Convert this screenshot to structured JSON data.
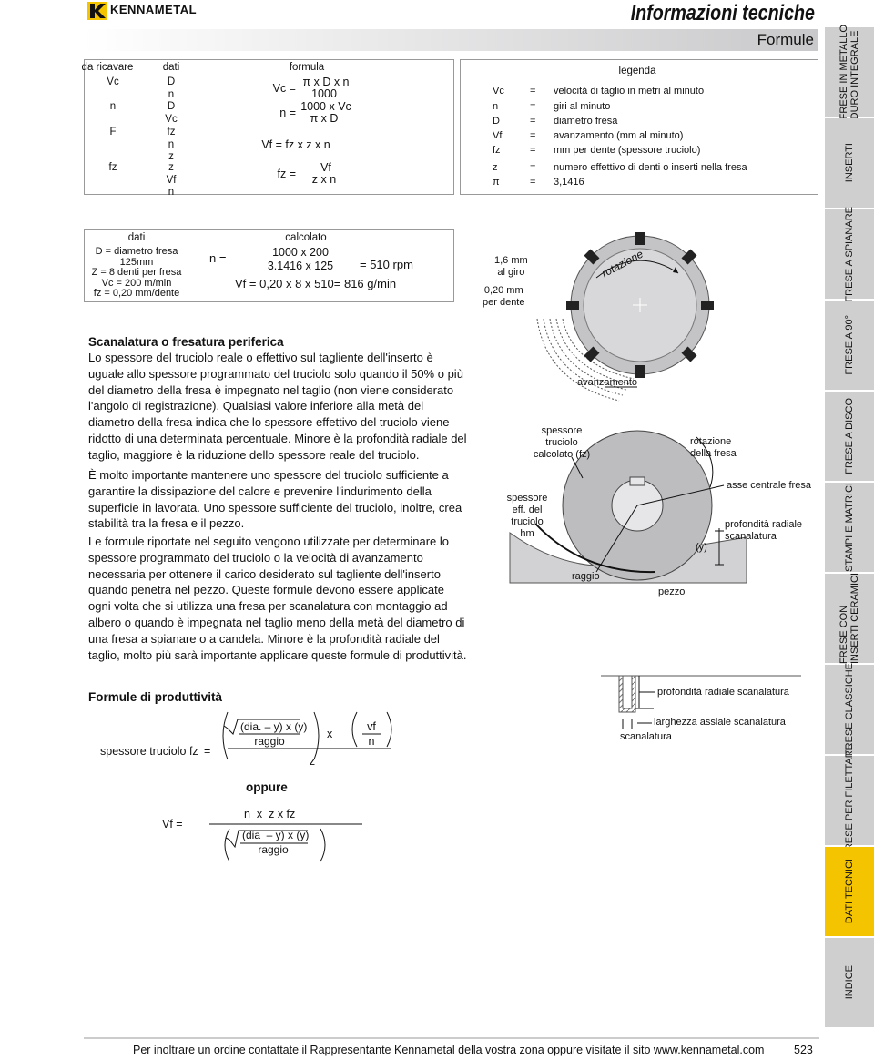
{
  "header": {
    "brand": "KENNAMETAL",
    "title": "Informazioni tecniche",
    "section": "Formule"
  },
  "formula_table": {
    "headers": [
      "da ricavare",
      "dati",
      "formula"
    ],
    "rows": [
      {
        "result": "Vc",
        "given": [
          "D",
          "n"
        ],
        "lhs": "Vc =",
        "numerator": "π x D x n",
        "denominator": "1000"
      },
      {
        "result": "n",
        "given": [
          "D",
          "Vc"
        ],
        "lhs": "n =",
        "numerator": "1000 x Vc",
        "denominator": "π x D"
      },
      {
        "result": "F",
        "given": [
          "fz",
          "n",
          "z"
        ],
        "formula": "Vf = fz x z x n"
      },
      {
        "result": "fz",
        "given": [
          "z",
          "Vf",
          "n"
        ],
        "lhs": "fz =",
        "numerator": "Vf",
        "denominator": "z x n"
      }
    ]
  },
  "legend": {
    "title": "legenda",
    "rows": [
      [
        "Vc",
        "=",
        "velocità di taglio in metri al minuto"
      ],
      [
        "n",
        "=",
        "giri al minuto"
      ],
      [
        "D",
        "=",
        "diametro fresa"
      ],
      [
        "Vf",
        "=",
        "avanzamento (mm al minuto)"
      ],
      [
        "fz",
        "=",
        "mm per dente (spessore truciolo)"
      ],
      [
        "z",
        "=",
        "numero effettivo di denti o inserti nella fresa"
      ],
      [
        "π",
        "=",
        "3,1416"
      ]
    ]
  },
  "example": {
    "headers": [
      "dati",
      "calcolato"
    ],
    "given": [
      "D = diametro fresa",
      "125mm",
      "Z = 8 denti per fresa",
      "Vc = 200 m/min",
      "fz = 0,20 mm/dente"
    ],
    "n_lhs": "n =",
    "n_numerator": "1000 x 200",
    "n_denominator": "3.1416 x 125",
    "n_result": "= 510 rpm",
    "vf": "Vf = 0,20 x 8 x 510= 816 g/min"
  },
  "diagram_feed": {
    "feed_per_rev": [
      "1,6 mm",
      "al giro"
    ],
    "feed_per_tooth": [
      "0,20 mm",
      "per dente"
    ],
    "rotation": "rotazione",
    "feed": "avanzamento"
  },
  "diagram_chip": {
    "calculated_chip": [
      "spessore",
      "truciolo",
      "calcolato (fz)"
    ],
    "cutter_rotation": [
      "rotazione",
      "della fresa"
    ],
    "axis": "asse centrale fresa",
    "effective_chip": [
      "spessore",
      "eff. del",
      "truciolo",
      "hm"
    ],
    "radial_depth": [
      "profondità radiale",
      "scanalatura"
    ],
    "y": "(y)",
    "radius": "raggio",
    "workpiece": "pezzo"
  },
  "diagram_slot": {
    "radial_depth": "profondità radiale scanalatura",
    "axial_width": "larghezza assiale scanalatura",
    "slot": "scanalatura"
  },
  "article": {
    "heading": "Scanalatura o fresatura periferica",
    "paragraphs": [
      "Lo spessore del truciolo reale o effettivo sul tagliente dell'inserto è uguale allo spessore programmato del truciolo solo quando il 50% o più del diametro della fresa è impegnato nel taglio (non viene considerato l'angolo di registrazione). Qualsiasi valore inferiore alla metà del diametro della fresa indica che lo spessore effettivo del truciolo viene ridotto di una determinata percentuale. Minore è la profondità radiale del taglio, maggiore è la riduzione dello spessore reale del truciolo.",
      "È molto importante mantenere uno spessore del truciolo sufficiente a garantire la dissipazione del calore e prevenire l'indurimento della superficie in lavorata. Uno spessore sufficiente del truciolo, inoltre, crea stabilità tra la fresa e il pezzo.",
      "Le formule riportate nel seguito vengono utilizzate per determinare lo spessore programmato del truciolo o la velocità di avanzamento necessaria per ottenere il carico desiderato sul tagliente dell'inserto quando penetra nel pezzo. Queste formule devono essere applicate ogni volta che si utilizza una fresa per scanalatura con montaggio ad albero o quando è impegnata nel taglio meno della metà del diametro di una fresa a spianare o a candela. Minore è la profondità radiale del taglio, molto più sarà importante applicare queste formule di produttività."
    ]
  },
  "productivity": {
    "heading": "Formule di produttività",
    "chip_label": "spessore truciolo fz",
    "equals": "=",
    "root1": "(dia. – y) x (y)",
    "radius1": "raggio",
    "times": "x",
    "z": "z",
    "vf": "vf",
    "n": "n",
    "or": "oppure",
    "vf_lhs": "Vf =",
    "numerator2": "n  x  z x fz",
    "root2": "(dia  – y) x (y)",
    "radius2": "raggio"
  },
  "sidebar": {
    "tabs": [
      [
        "FRESE IN METALLO",
        "DURO INTEGRALE"
      ],
      [
        "INSERTI"
      ],
      [
        "FRESE A SPIANARE"
      ],
      [
        "FRESE A 90°"
      ],
      [
        "FRESE A DISCO"
      ],
      [
        "STAMPI E MATRICI"
      ],
      [
        "FRESE CON",
        "INSERTI CERAMICI"
      ],
      [
        "FRESE CLASSICHE"
      ],
      [
        "FRESE PER FILETTARE"
      ],
      [
        "DATI TECNICI"
      ],
      [
        "INDICE"
      ]
    ]
  },
  "footer": {
    "text": "Per inoltrare un ordine contattate il Rappresentante Kennametal della vostra zona oppure visitate il sito www.kennametal.com",
    "page": "523"
  }
}
